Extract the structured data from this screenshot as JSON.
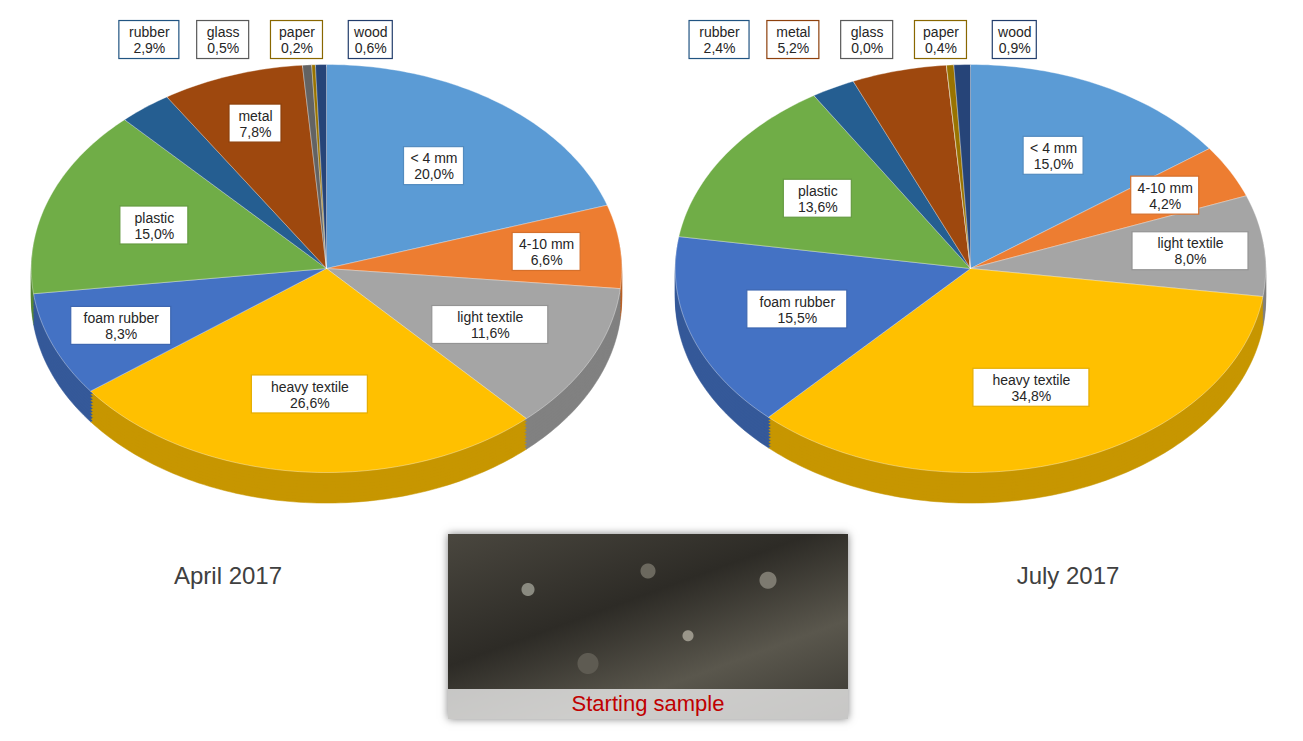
{
  "chart_data": [
    {
      "type": "pie",
      "title": "April 2017",
      "categories": [
        "< 4 mm",
        "4-10 mm",
        "light textile",
        "heavy textile",
        "foam rubber",
        "plastic",
        "rubber",
        "metal",
        "glass",
        "paper",
        "wood"
      ],
      "values": [
        20.0,
        6.6,
        11.6,
        26.6,
        8.3,
        15.0,
        2.9,
        7.8,
        0.5,
        0.2,
        0.6
      ],
      "value_labels": [
        "20,0%",
        "6,6%",
        "11,6%",
        "26,6%",
        "8,3%",
        "15,0%",
        "2,9%",
        "7,8%",
        "0,5%",
        "0,2%",
        "0,6%"
      ],
      "colors": [
        "#5b9bd5",
        "#ed7d31",
        "#a5a5a5",
        "#ffc000",
        "#4472c4",
        "#70ad47",
        "#255e91",
        "#9e480e",
        "#636363",
        "#997300",
        "#264478"
      ],
      "data_labels": true
    },
    {
      "type": "pie",
      "title": "July 2017",
      "categories": [
        "< 4 mm",
        "4-10 mm",
        "light textile",
        "heavy textile",
        "foam rubber",
        "plastic",
        "rubber",
        "metal",
        "glass",
        "paper",
        "wood"
      ],
      "values": [
        15.0,
        4.2,
        8.0,
        34.8,
        15.5,
        13.6,
        2.4,
        5.2,
        0.0,
        0.4,
        0.9
      ],
      "value_labels": [
        "15,0%",
        "4,2%",
        "8,0%",
        "34,8%",
        "15,5%",
        "13,6%",
        "2,4%",
        "5,2%",
        "0,0%",
        "0,4%",
        "0,9%"
      ],
      "colors": [
        "#5b9bd5",
        "#ed7d31",
        "#a5a5a5",
        "#ffc000",
        "#4472c4",
        "#70ad47",
        "#255e91",
        "#9e480e",
        "#636363",
        "#997300",
        "#264478"
      ],
      "data_labels": true
    }
  ],
  "image": {
    "caption": "Starting sample"
  }
}
